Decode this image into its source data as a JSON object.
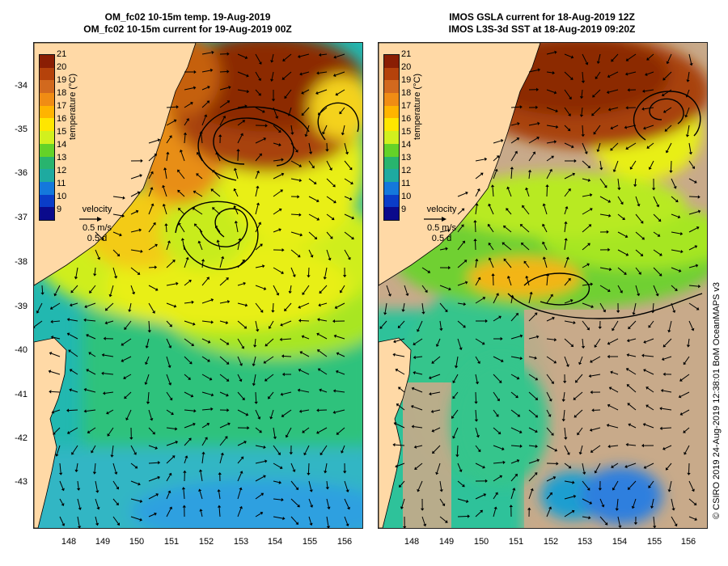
{
  "titles": {
    "left": [
      "OM_fc02 10-15m temp. 19-Aug-2019",
      "OM_fc02 10-15m current for 19-Aug-2019 00Z"
    ],
    "right": [
      "IMOS GSLA current for 18-Aug-2019 12Z",
      "IMOS L3S-3d SST at 18-Aug-2019 09:20Z"
    ]
  },
  "lat_labels": [
    "-34",
    "-35",
    "-36",
    "-37",
    "-38",
    "-39",
    "-40",
    "-41",
    "-42",
    "-43"
  ],
  "lon_labels": [
    "148",
    "149",
    "150",
    "151",
    "152",
    "153",
    "154",
    "155",
    "156"
  ],
  "colorbar": {
    "ticks": [
      "21",
      "20",
      "19",
      "18",
      "17",
      "16",
      "15",
      "14",
      "13",
      "12",
      "11",
      "10",
      "9"
    ],
    "label": "temperature (°C)",
    "colors": [
      "#8a1e04",
      "#b5420b",
      "#d2691e",
      "#f08c14",
      "#ffb400",
      "#ffe600",
      "#d2f01e",
      "#64d228",
      "#28b46e",
      "#1eaaa0",
      "#1478dc",
      "#0a3cc8",
      "#0a0a8c"
    ]
  },
  "legend": {
    "title": "velocity",
    "speed": "0.5 m/s",
    "time": "0.5 d"
  },
  "credit": "© CSIRO 2019   24-Aug-2019 12:38:01 BoM OceanMAPS v3",
  "colors": {
    "land": "#ffd9a6",
    "no_data": "#c8aa8a",
    "arrow": "#000000"
  }
}
